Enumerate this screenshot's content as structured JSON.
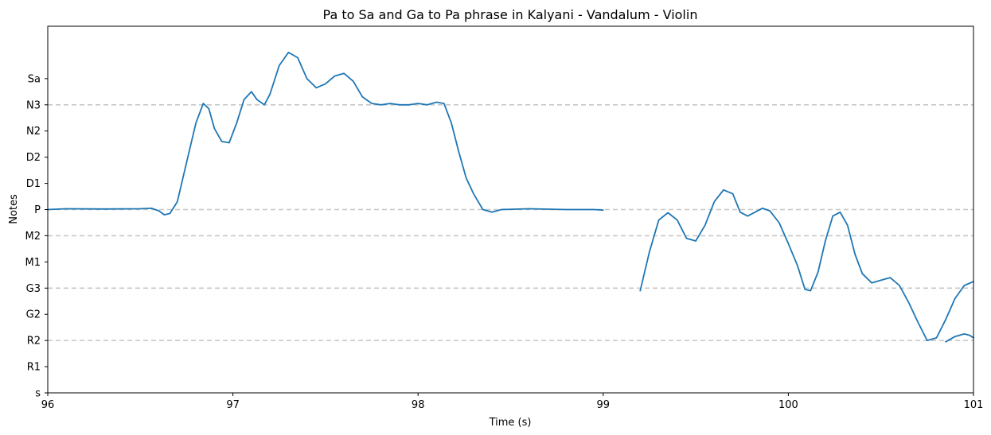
{
  "chart_data": {
    "type": "line",
    "title": "Pa to Sa and Ga to Pa phrase in Kalyani - Vandalum - Violin",
    "xlabel": "Time (s)",
    "ylabel": "Notes",
    "xlim": [
      96,
      101
    ],
    "ylim": [
      0,
      14
    ],
    "x_ticks": [
      {
        "value": 96,
        "label": "96"
      },
      {
        "value": 97,
        "label": "97"
      },
      {
        "value": 98,
        "label": "98"
      },
      {
        "value": 99,
        "label": "99"
      },
      {
        "value": 100,
        "label": "100"
      },
      {
        "value": 101,
        "label": "101"
      }
    ],
    "y_ticks": [
      {
        "value": 0,
        "label": "s"
      },
      {
        "value": 1,
        "label": "R1"
      },
      {
        "value": 2,
        "label": "R2"
      },
      {
        "value": 3,
        "label": "G2"
      },
      {
        "value": 4,
        "label": "G3"
      },
      {
        "value": 5,
        "label": "M1"
      },
      {
        "value": 6,
        "label": "M2"
      },
      {
        "value": 7,
        "label": "P"
      },
      {
        "value": 8,
        "label": "D1"
      },
      {
        "value": 9,
        "label": "D2"
      },
      {
        "value": 10,
        "label": "N2"
      },
      {
        "value": 11,
        "label": "N3"
      },
      {
        "value": 12,
        "label": "Sa"
      }
    ],
    "reference_lines": [
      {
        "note": "N3",
        "value": 11
      },
      {
        "note": "P",
        "value": 7
      },
      {
        "note": "M2",
        "value": 6
      },
      {
        "note": "G3",
        "value": 4
      },
      {
        "note": "R2",
        "value": 2
      }
    ],
    "colors": {
      "line": "#1f77b4",
      "reference": "#c8c8c8"
    },
    "series": [
      {
        "name": "pitch segment 1",
        "points": [
          [
            96.0,
            7.0
          ],
          [
            96.1,
            7.03
          ],
          [
            96.3,
            7.02
          ],
          [
            96.5,
            7.03
          ],
          [
            96.56,
            7.05
          ],
          [
            96.6,
            6.95
          ],
          [
            96.63,
            6.8
          ],
          [
            96.66,
            6.85
          ],
          [
            96.7,
            7.3
          ],
          [
            96.75,
            8.8
          ],
          [
            96.8,
            10.3
          ],
          [
            96.84,
            11.05
          ],
          [
            96.87,
            10.85
          ],
          [
            96.9,
            10.1
          ],
          [
            96.94,
            9.6
          ],
          [
            96.98,
            9.55
          ],
          [
            97.02,
            10.3
          ],
          [
            97.06,
            11.2
          ],
          [
            97.1,
            11.5
          ],
          [
            97.13,
            11.2
          ],
          [
            97.17,
            11.0
          ],
          [
            97.2,
            11.4
          ],
          [
            97.25,
            12.5
          ],
          [
            97.3,
            13.0
          ],
          [
            97.35,
            12.8
          ],
          [
            97.4,
            12.0
          ],
          [
            97.45,
            11.65
          ],
          [
            97.5,
            11.8
          ],
          [
            97.55,
            12.1
          ],
          [
            97.6,
            12.2
          ],
          [
            97.65,
            11.9
          ],
          [
            97.7,
            11.3
          ],
          [
            97.75,
            11.05
          ],
          [
            97.8,
            11.0
          ],
          [
            97.85,
            11.05
          ],
          [
            97.9,
            11.0
          ],
          [
            97.95,
            11.0
          ],
          [
            98.0,
            11.05
          ],
          [
            98.05,
            11.0
          ],
          [
            98.1,
            11.1
          ],
          [
            98.14,
            11.05
          ],
          [
            98.18,
            10.3
          ],
          [
            98.22,
            9.2
          ],
          [
            98.26,
            8.2
          ],
          [
            98.3,
            7.6
          ],
          [
            98.35,
            7.0
          ],
          [
            98.4,
            6.9
          ],
          [
            98.45,
            7.0
          ],
          [
            98.6,
            7.03
          ],
          [
            98.8,
            7.0
          ],
          [
            98.95,
            7.0
          ],
          [
            99.0,
            6.98
          ]
        ]
      },
      {
        "name": "pitch segment 2",
        "points": [
          [
            99.2,
            3.9
          ],
          [
            99.25,
            5.4
          ],
          [
            99.3,
            6.6
          ],
          [
            99.35,
            6.88
          ],
          [
            99.4,
            6.6
          ],
          [
            99.45,
            5.9
          ],
          [
            99.5,
            5.8
          ],
          [
            99.55,
            6.4
          ],
          [
            99.6,
            7.3
          ],
          [
            99.65,
            7.75
          ],
          [
            99.7,
            7.6
          ],
          [
            99.74,
            6.9
          ],
          [
            99.78,
            6.75
          ],
          [
            99.82,
            6.9
          ],
          [
            99.86,
            7.05
          ],
          [
            99.9,
            6.95
          ],
          [
            99.95,
            6.5
          ],
          [
            100.0,
            5.7
          ],
          [
            100.05,
            4.85
          ],
          [
            100.09,
            3.95
          ],
          [
            100.12,
            3.9
          ],
          [
            100.16,
            4.6
          ],
          [
            100.2,
            5.8
          ],
          [
            100.24,
            6.75
          ],
          [
            100.28,
            6.9
          ],
          [
            100.32,
            6.4
          ],
          [
            100.36,
            5.3
          ],
          [
            100.4,
            4.55
          ],
          [
            100.45,
            4.2
          ],
          [
            100.5,
            4.3
          ],
          [
            100.55,
            4.4
          ],
          [
            100.6,
            4.1
          ],
          [
            100.65,
            3.45
          ],
          [
            100.7,
            2.7
          ],
          [
            100.75,
            2.0
          ],
          [
            100.8,
            2.1
          ],
          [
            100.85,
            2.8
          ],
          [
            100.9,
            3.6
          ],
          [
            100.95,
            4.1
          ],
          [
            101.0,
            4.25
          ],
          [
            101.05,
            4.2
          ]
        ]
      },
      {
        "name": "pitch segment 3",
        "points": [
          [
            100.85,
            1.95
          ],
          [
            100.9,
            2.15
          ],
          [
            100.95,
            2.25
          ],
          [
            100.98,
            2.2
          ],
          [
            101.0,
            2.1
          ]
        ]
      }
    ]
  }
}
